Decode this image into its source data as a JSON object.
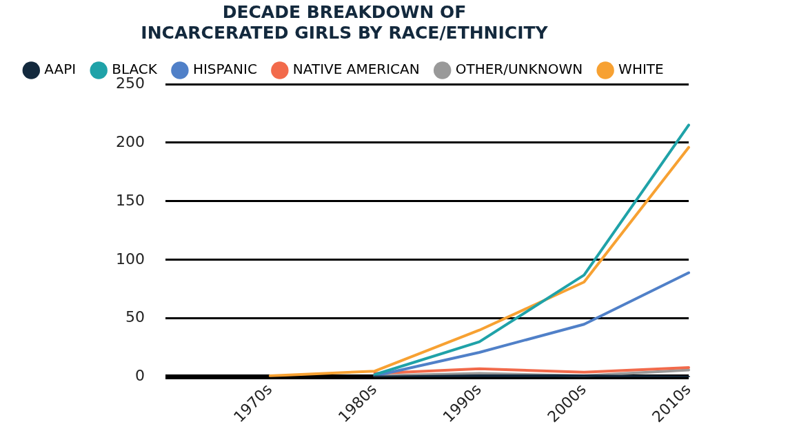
{
  "chart_data": {
    "type": "line",
    "title": "DECADE BREAKDOWN OF\nINCARCERATED GIRLS BY RACE/ETHNICITY",
    "categories": [
      null,
      "1970s",
      "1980s",
      "1990s",
      "2000s",
      "2010s"
    ],
    "series": [
      {
        "name": "AAPI",
        "color": "#13293d",
        "values": [
          null,
          null,
          0,
          1,
          1,
          0
        ]
      },
      {
        "name": "BLACK",
        "color": "#1fa2a8",
        "values": [
          null,
          null,
          2,
          30,
          87,
          215
        ]
      },
      {
        "name": "HISPANIC",
        "color": "#5080c8",
        "values": [
          null,
          null,
          1,
          21,
          45,
          89
        ]
      },
      {
        "name": "NATIVE AMERICAN",
        "color": "#f26a4b",
        "values": [
          null,
          null,
          3,
          7,
          4,
          8
        ]
      },
      {
        "name": "OTHER/UNKNOWN",
        "color": "#999999",
        "values": [
          null,
          null,
          1,
          3,
          1,
          6
        ]
      },
      {
        "name": "WHITE",
        "color": "#f7a132",
        "values": [
          null,
          1,
          5,
          40,
          81,
          196
        ]
      }
    ],
    "ylim": [
      0,
      250
    ],
    "yticks": [
      0,
      50,
      100,
      150,
      200,
      250
    ],
    "grid": "y",
    "legend": "top",
    "marker": "none",
    "line_style": "solid"
  }
}
